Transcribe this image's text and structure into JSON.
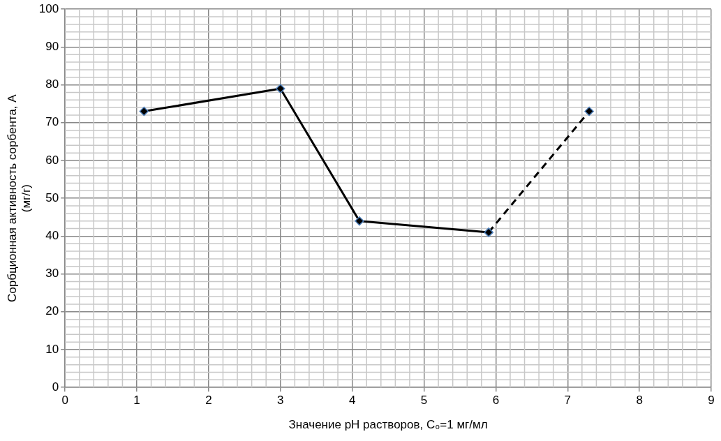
{
  "chart_data": {
    "type": "line",
    "xlabel": "Значение pH растворов, C₀=1 мг/мл",
    "ylabel": "Сорбционная активность сорбента, А\n(мг/г)",
    "xlim": [
      0,
      9
    ],
    "xticks": [
      0,
      1,
      2,
      3,
      4,
      5,
      6,
      7,
      8,
      9
    ],
    "ylim": [
      0,
      100
    ],
    "yticks": [
      0,
      10,
      20,
      30,
      40,
      50,
      60,
      70,
      80,
      90,
      100
    ],
    "grid": true,
    "legend": false,
    "marker": "diamond",
    "series": [
      {
        "color": "#000000",
        "x": [
          1.1,
          3,
          4.1,
          5.9
        ],
        "values": [
          73,
          79,
          44,
          41
        ],
        "line_style": "solid"
      },
      {
        "color": "#000000",
        "x": [
          5.9,
          7.3
        ],
        "values": [
          41,
          73
        ],
        "line_style": "dashed"
      }
    ]
  }
}
